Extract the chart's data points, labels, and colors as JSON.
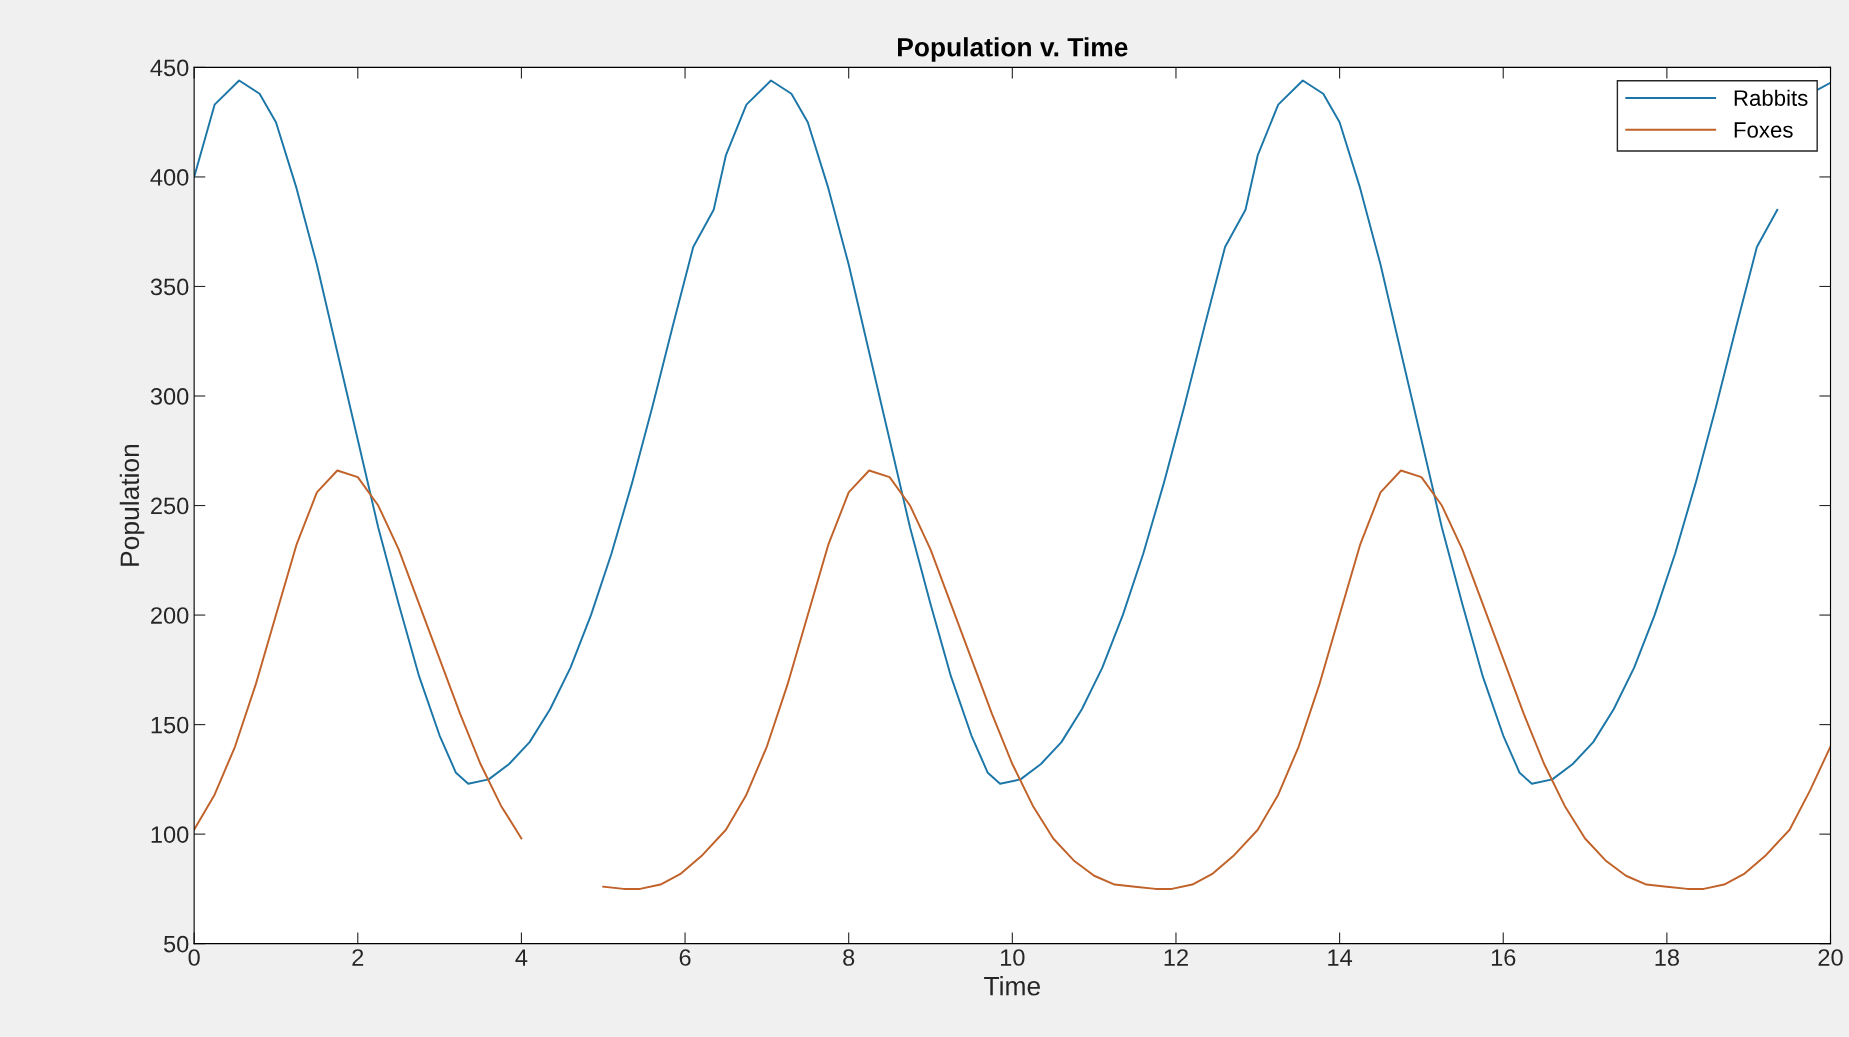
{
  "chart_data": {
    "type": "line",
    "title": "Population v. Time",
    "xlabel": "Time",
    "ylabel": "Population",
    "xlim": [
      0,
      20
    ],
    "xticks": [
      0,
      2,
      4,
      6,
      8,
      10,
      12,
      14,
      16,
      18,
      20
    ],
    "ylim": [
      50,
      450
    ],
    "yticks": [
      50,
      100,
      150,
      200,
      250,
      300,
      350,
      400,
      450
    ],
    "grid": false,
    "legend": "top right",
    "marker": "none",
    "line_style": "solid",
    "series": [
      {
        "name": "Rabbits",
        "color": "#1c77a8",
        "x": [
          0,
          0.25,
          0.55,
          0.8,
          1,
          1.25,
          1.5,
          1.75,
          2,
          2.25,
          2.5,
          2.75,
          3,
          3.2,
          3.35,
          3.6,
          3.85,
          4.1,
          4.35,
          4.6,
          4.85,
          5.1,
          5.35,
          5.6,
          5.85,
          6.1,
          6.35,
          6.5,
          6.75,
          7.05,
          7.3,
          7.5,
          7.75,
          8,
          8.25,
          8.5,
          8.75,
          9,
          9.25,
          9.5,
          9.7,
          9.85,
          10.1,
          10.35,
          10.6,
          10.85,
          11.1,
          11.35,
          11.6,
          11.85,
          12.1,
          12.35,
          12.6,
          12.85,
          13,
          13.25,
          13.55,
          13.8,
          14,
          14.25,
          14.5,
          14.75,
          15,
          15.25,
          15.5,
          15.75,
          16,
          16.2,
          16.35,
          16.6,
          16.85,
          17.1,
          17.35,
          17.6,
          17.85,
          18.1,
          18.35,
          18.6,
          18.85,
          19.1,
          19.35,
          19.6,
          19.85,
          20
        ],
        "values": [
          400,
          433,
          444,
          438,
          425,
          395,
          360,
          320,
          280,
          240,
          205,
          172,
          145,
          128,
          123,
          125,
          132,
          142,
          157,
          176,
          200,
          228,
          260,
          295,
          332,
          368,
          385,
          410,
          433,
          444,
          438,
          425,
          395,
          360,
          320,
          280,
          240,
          205,
          172,
          145,
          128,
          123,
          125,
          132,
          142,
          157,
          176,
          200,
          228,
          260,
          295,
          332,
          368,
          385,
          410,
          433,
          444,
          438,
          425,
          395,
          360,
          320,
          280,
          240,
          205,
          172,
          145,
          128,
          123,
          125,
          132,
          142,
          157,
          176,
          200,
          228,
          260,
          295,
          332,
          368,
          385,
          null,
          440,
          443
        ]
      },
      {
        "name": "Foxes",
        "color": "#c0622a",
        "x": [
          0,
          0.25,
          0.5,
          0.75,
          1,
          1.25,
          1.5,
          1.75,
          2,
          2.25,
          2.5,
          2.75,
          3,
          3.25,
          3.5,
          3.75,
          4,
          4.25,
          4.5,
          4.75,
          5,
          5.25,
          5.45,
          5.7,
          5.95,
          6.2,
          6.5,
          6.75,
          7,
          7.25,
          7.5,
          7.75,
          8,
          8.25,
          8.5,
          8.75,
          9,
          9.25,
          9.5,
          9.75,
          10,
          10.25,
          10.5,
          10.75,
          11,
          11.25,
          11.5,
          11.75,
          11.95,
          12.2,
          12.45,
          12.7,
          13,
          13.25,
          13.5,
          13.75,
          14,
          14.25,
          14.5,
          14.75,
          15,
          15.25,
          15.5,
          15.75,
          16,
          16.25,
          16.5,
          16.75,
          17,
          17.25,
          17.5,
          17.75,
          18,
          18.25,
          18.45,
          18.7,
          18.95,
          19.2,
          19.5,
          19.75,
          20
        ],
        "values": [
          102,
          118,
          140,
          168,
          200,
          232,
          256,
          266,
          263,
          250,
          230,
          205,
          180,
          155,
          132,
          113,
          98,
          null,
          null,
          null,
          76,
          75,
          75,
          77,
          82,
          90,
          102,
          118,
          140,
          168,
          200,
          232,
          256,
          266,
          263,
          250,
          230,
          205,
          180,
          155,
          132,
          113,
          98,
          88,
          81,
          77,
          76,
          75,
          75,
          77,
          82,
          90,
          102,
          118,
          140,
          168,
          200,
          232,
          256,
          266,
          263,
          250,
          230,
          205,
          180,
          155,
          132,
          113,
          98,
          88,
          81,
          77,
          76,
          75,
          75,
          77,
          82,
          90,
          102,
          120,
          140
        ]
      }
    ]
  }
}
